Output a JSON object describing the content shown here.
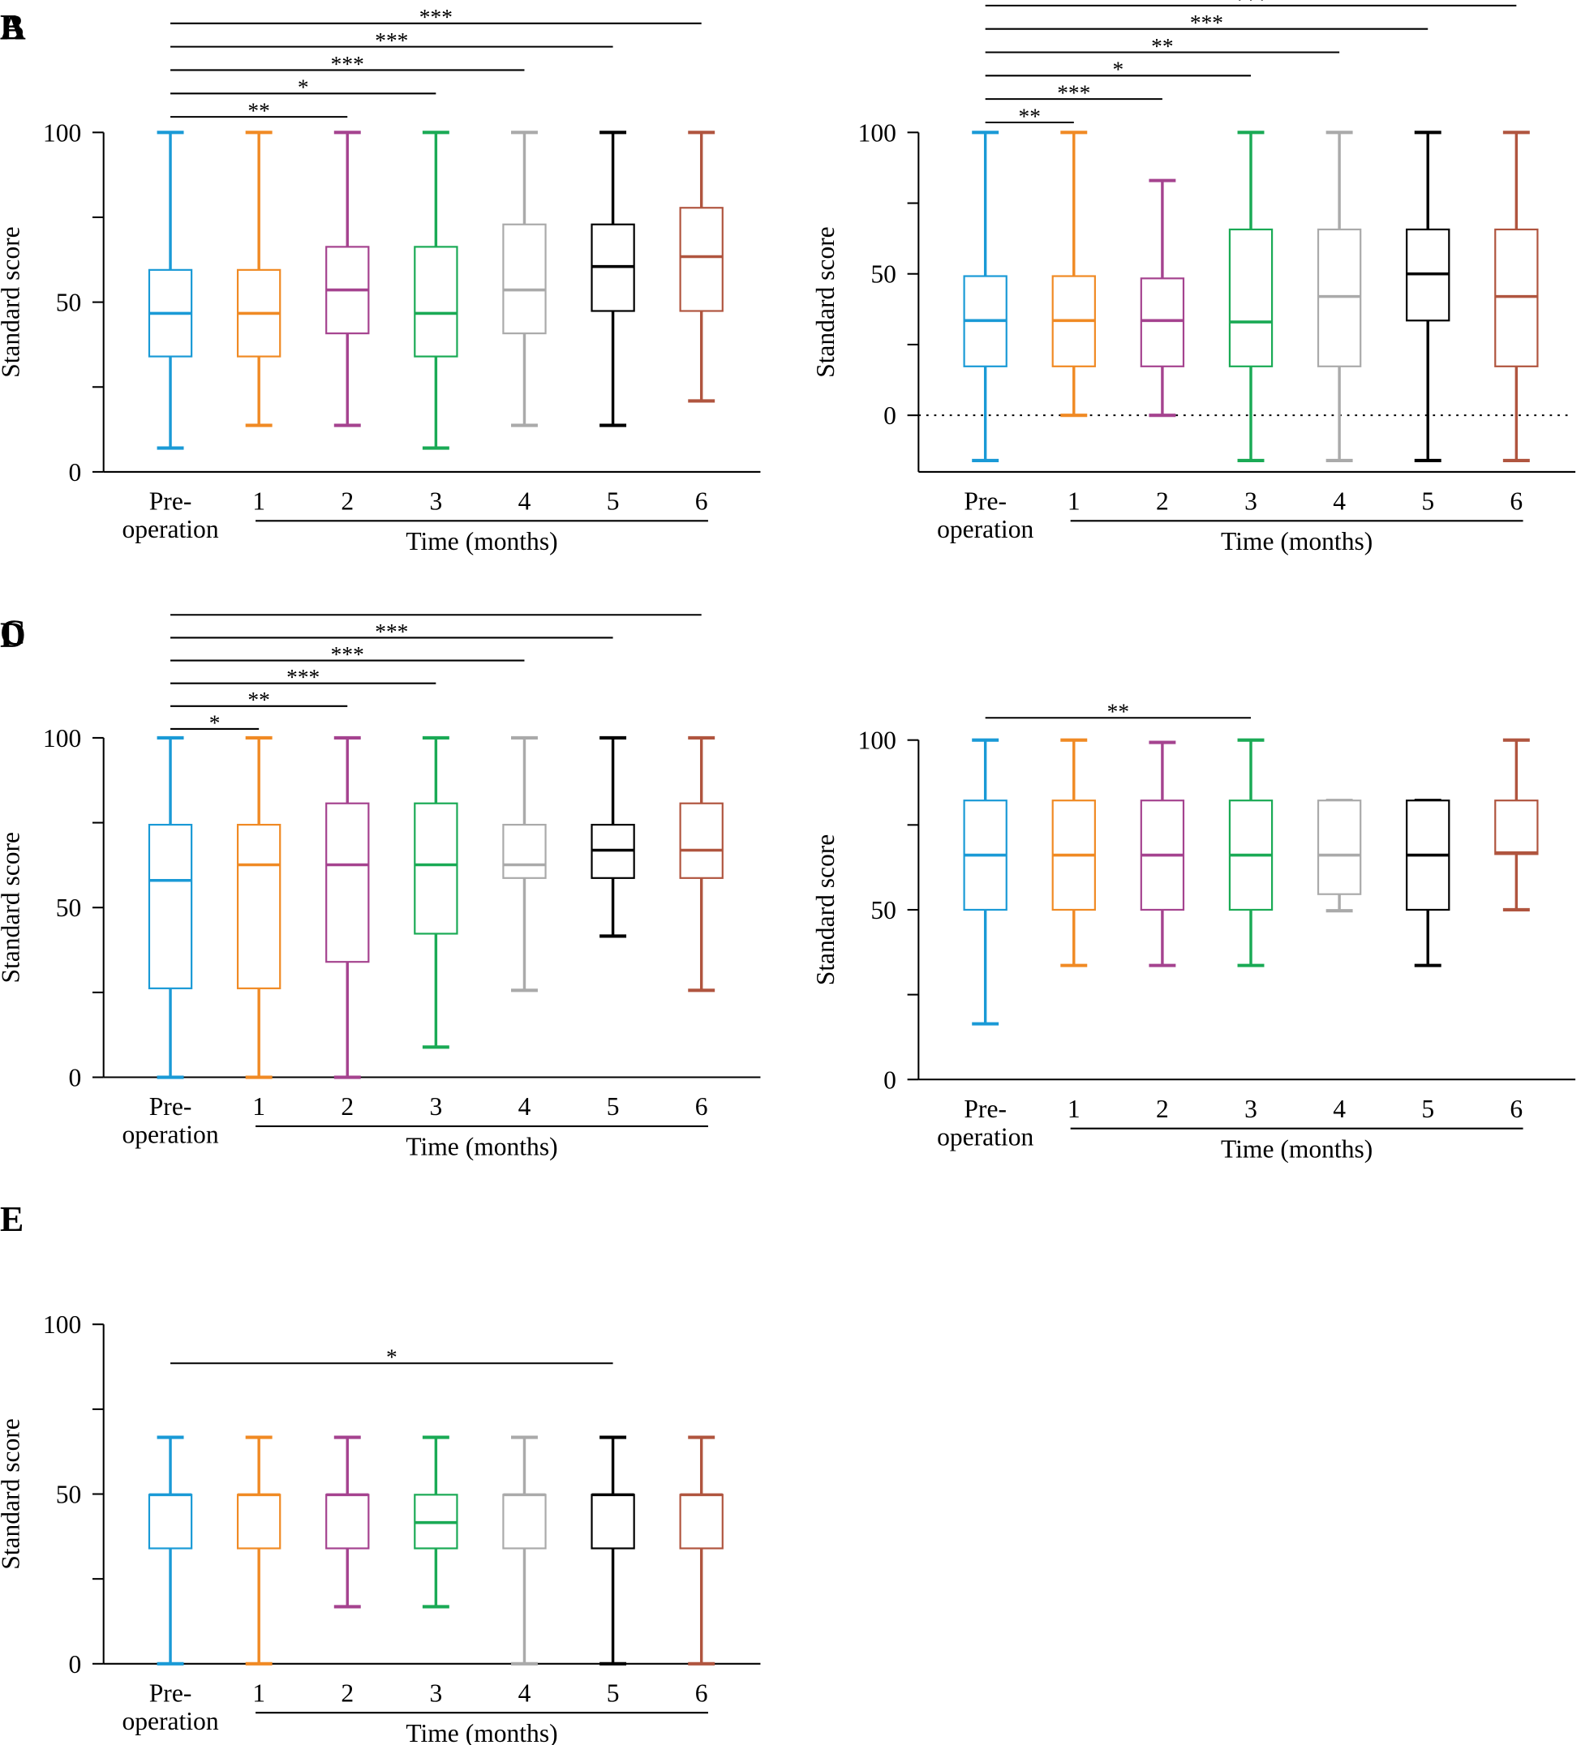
{
  "chart_data": [
    {
      "type": "box",
      "panel": "A",
      "ylabel": "Standard score",
      "xlabel": "Time (months)",
      "categories": [
        "Pre-operation",
        "1",
        "2",
        "3",
        "4",
        "5",
        "6"
      ],
      "colors": [
        "#1a9ad6",
        "#f08a24",
        "#a5438f",
        "#1aaa55",
        "#aaaaaa",
        "#000000",
        "#b0553f"
      ],
      "min": [
        7,
        13.7,
        13.7,
        7,
        13.7,
        13.7,
        20.9
      ],
      "q1": [
        34,
        34,
        40.8,
        34,
        40.8,
        47.4,
        47.4
      ],
      "median": [
        46.7,
        46.7,
        53.6,
        46.7,
        53.6,
        60.5,
        63.4
      ],
      "q3": [
        59.5,
        59.5,
        66.3,
        66.3,
        72.9,
        72.9,
        77.8
      ],
      "max": [
        100,
        100,
        100,
        100,
        100,
        100,
        100
      ],
      "ylim": [
        0,
        100
      ],
      "yticks": [
        0,
        50,
        100
      ],
      "minor_yticks": [
        25,
        75
      ],
      "significance": [
        {
          "pair": [
            0,
            2
          ],
          "label": "**"
        },
        {
          "pair": [
            0,
            3
          ],
          "label": "*"
        },
        {
          "pair": [
            0,
            4
          ],
          "label": "***"
        },
        {
          "pair": [
            0,
            5
          ],
          "label": "***"
        },
        {
          "pair": [
            0,
            6
          ],
          "label": "***"
        }
      ]
    },
    {
      "type": "box",
      "panel": "B",
      "ylabel": "Standard score",
      "xlabel": "Time (months)",
      "categories": [
        "Pre-operation",
        "1",
        "2",
        "3",
        "4",
        "5",
        "6"
      ],
      "colors": [
        "#1a9ad6",
        "#f08a24",
        "#a5438f",
        "#1aaa55",
        "#aaaaaa",
        "#000000",
        "#b0553f"
      ],
      "min": [
        -16,
        0,
        0,
        -16,
        -16,
        -16,
        -16
      ],
      "q1": [
        17.3,
        17.3,
        17.3,
        17.3,
        17.3,
        33.5,
        17.3
      ],
      "median": [
        33.5,
        33.5,
        33.5,
        33,
        42,
        50,
        42
      ],
      "q3": [
        49.2,
        49.2,
        48.4,
        65.7,
        65.7,
        65.7,
        65.7
      ],
      "max": [
        100,
        100,
        83,
        100,
        100,
        100,
        100
      ],
      "ylim": [
        -20,
        100
      ],
      "yticks": [
        0,
        50,
        100
      ],
      "minor_yticks": [
        25,
        75
      ],
      "reference_line": 0,
      "significance": [
        {
          "pair": [
            0,
            1
          ],
          "label": "**"
        },
        {
          "pair": [
            0,
            2
          ],
          "label": "***"
        },
        {
          "pair": [
            0,
            3
          ],
          "label": "*"
        },
        {
          "pair": [
            0,
            4
          ],
          "label": "**"
        },
        {
          "pair": [
            0,
            5
          ],
          "label": "***"
        },
        {
          "pair": [
            0,
            6
          ],
          "label": "***"
        }
      ]
    },
    {
      "type": "box",
      "panel": "C",
      "ylabel": "Standard score",
      "xlabel": "Time (months)",
      "categories": [
        "Pre-operation",
        "1",
        "2",
        "3",
        "4",
        "5",
        "6"
      ],
      "colors": [
        "#1a9ad6",
        "#f08a24",
        "#a5438f",
        "#1aaa55",
        "#aaaaaa",
        "#000000",
        "#b0553f"
      ],
      "min": [
        0,
        0,
        0,
        8.9,
        25.6,
        41.6,
        25.6
      ],
      "q1": [
        26.2,
        26.2,
        34,
        42.3,
        58.7,
        58.7,
        58.7
      ],
      "median": [
        58,
        62.6,
        62.6,
        62.6,
        62.6,
        66.9,
        66.9
      ],
      "q3": [
        74.4,
        74.4,
        80.7,
        80.7,
        74.4,
        74.4,
        80.7
      ],
      "max": [
        100,
        100,
        100,
        100,
        100,
        100,
        100
      ],
      "ylim": [
        0,
        100
      ],
      "yticks": [
        0,
        50,
        100
      ],
      "minor_yticks": [
        25,
        75
      ],
      "significance": [
        {
          "pair": [
            0,
            1
          ],
          "label": "*"
        },
        {
          "pair": [
            0,
            2
          ],
          "label": "**"
        },
        {
          "pair": [
            0,
            3
          ],
          "label": "***"
        },
        {
          "pair": [
            0,
            4
          ],
          "label": "***"
        },
        {
          "pair": [
            0,
            5
          ],
          "label": "***"
        },
        {
          "pair": [
            0,
            6
          ]
        }
      ]
    },
    {
      "type": "box",
      "panel": "D",
      "ylabel": "Standard score",
      "xlabel": "Time (months)",
      "categories": [
        "Pre-operation",
        "1",
        "2",
        "3",
        "4",
        "5",
        "6"
      ],
      "colors": [
        "#1a9ad6",
        "#f08a24",
        "#a5438f",
        "#1aaa55",
        "#aaaaaa",
        "#000000",
        "#b0553f"
      ],
      "min": [
        16.4,
        33.6,
        33.6,
        33.6,
        49.7,
        33.6,
        50
      ],
      "q1": [
        50,
        50,
        50,
        50,
        54.6,
        50,
        66.4
      ],
      "median": [
        66.1,
        66.1,
        66.1,
        66.1,
        66.1,
        66.1,
        66.8
      ],
      "q3": [
        82.2,
        82.2,
        82.2,
        82.2,
        82.2,
        82.2,
        82.2
      ],
      "max": [
        100,
        100,
        99.3,
        100,
        82.2,
        82.2,
        100
      ],
      "ylim": [
        0,
        100
      ],
      "yticks": [
        0,
        50,
        100
      ],
      "minor_yticks": [
        25,
        75
      ],
      "significance": [
        {
          "pair": [
            0,
            3
          ],
          "label": "**"
        }
      ]
    },
    {
      "type": "box",
      "panel": "E",
      "ylabel": "Standard score",
      "xlabel": "Time (months)",
      "categories": [
        "Pre-operation",
        "1",
        "2",
        "3",
        "4",
        "5",
        "6"
      ],
      "colors": [
        "#1a9ad6",
        "#f08a24",
        "#a5438f",
        "#1aaa55",
        "#aaaaaa",
        "#000000",
        "#b0553f"
      ],
      "min": [
        0,
        0,
        16.8,
        16.8,
        0,
        0,
        0
      ],
      "q1": [
        34,
        34,
        34,
        34,
        34,
        34,
        34
      ],
      "median": [
        49.8,
        49.8,
        49.8,
        41.6,
        49.8,
        49.8,
        49.8
      ],
      "q3": [
        49.8,
        49.8,
        49.8,
        49.8,
        49.8,
        49.8,
        49.8
      ],
      "max": [
        66.7,
        66.7,
        66.7,
        66.7,
        66.7,
        66.7,
        66.7
      ],
      "ylim": [
        0,
        100
      ],
      "yticks": [
        0,
        50,
        100
      ],
      "minor_yticks": [
        25,
        75
      ],
      "significance": [
        {
          "pair": [
            0,
            5
          ],
          "label": "*"
        }
      ]
    }
  ]
}
